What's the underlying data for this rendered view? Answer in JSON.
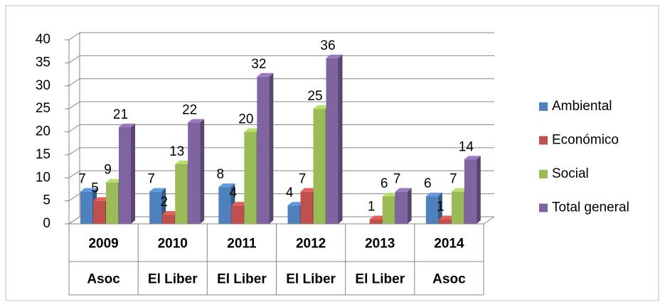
{
  "chart_data": {
    "type": "bar3d",
    "categories": [
      "2009",
      "2010",
      "2011",
      "2012",
      "2013",
      "2014"
    ],
    "category_groups": [
      "Asoc",
      "El Liber",
      "El Liber",
      "El Liber",
      "El Liber",
      "Asoc"
    ],
    "series": [
      {
        "name": "Ambiental",
        "color": "#4f81bd",
        "values": [
          7,
          7,
          8,
          4,
          null,
          6
        ]
      },
      {
        "name": "Económico",
        "color": "#c0504d",
        "values": [
          5,
          2,
          4,
          7,
          1,
          1
        ]
      },
      {
        "name": "Social",
        "color": "#9bbb59",
        "values": [
          9,
          13,
          20,
          25,
          6,
          7
        ]
      },
      {
        "name": "Total general",
        "color": "#8064a2",
        "values": [
          21,
          22,
          32,
          36,
          7,
          14
        ]
      }
    ],
    "ylim": [
      0,
      40
    ],
    "yticks": [
      0,
      5,
      10,
      15,
      20,
      25,
      30,
      35,
      40
    ],
    "grid": true,
    "legend": "right"
  }
}
